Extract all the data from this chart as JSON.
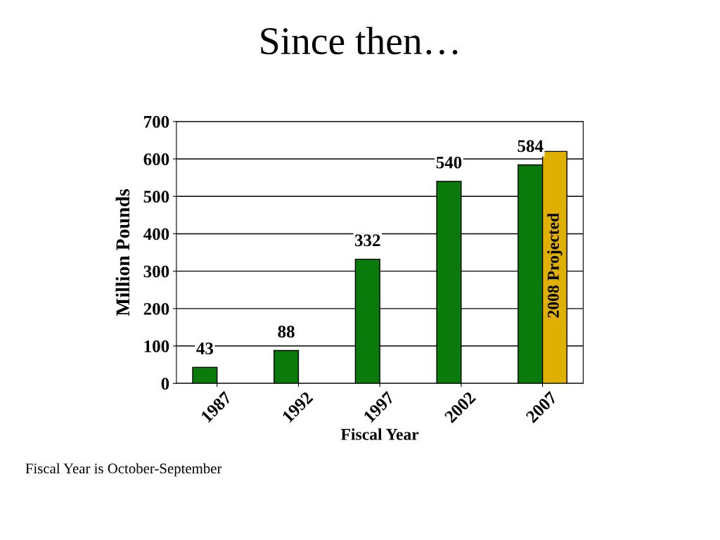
{
  "chart_data": {
    "type": "bar",
    "title": "Since then…",
    "xlabel": "Fiscal Year",
    "ylabel": "Million Pounds",
    "categories": [
      "1987",
      "1992",
      "1997",
      "2002",
      "2007"
    ],
    "series": [
      {
        "color": "#0a7a0a",
        "values": [
          43,
          88,
          332,
          540,
          584
        ],
        "value_labels": [
          "43",
          "88",
          "332",
          "540",
          "584"
        ]
      },
      {
        "name": "2008 Projected",
        "color": "#e0b000",
        "values": [
          null,
          null,
          null,
          null,
          620
        ]
      }
    ],
    "ylim": [
      0,
      700
    ],
    "yticks": [
      0,
      100,
      200,
      300,
      400,
      500,
      600,
      700
    ],
    "grid": "y",
    "legend": false,
    "annotations": [
      "Fiscal Year is October-September"
    ]
  }
}
